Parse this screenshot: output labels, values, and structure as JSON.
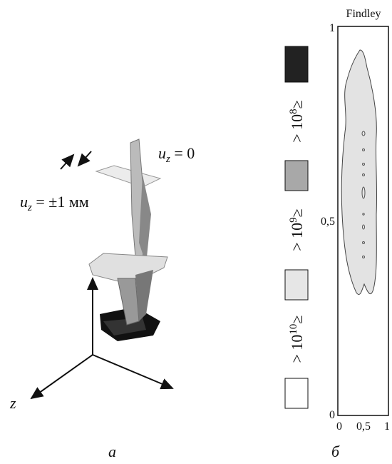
{
  "panel_a": {
    "caption": "а",
    "axis_label": "z",
    "label_fixed": {
      "var": "u",
      "sub": "z",
      "rest": " = 0"
    },
    "label_disp": {
      "var": "u",
      "sub": "z",
      "rest": " = ±1 мм"
    }
  },
  "panel_b": {
    "caption": "б",
    "title": "Findley",
    "y_ticks": [
      "1",
      "0,5",
      "0"
    ],
    "x_ticks": [
      "0",
      "0,5",
      "1"
    ],
    "legend": [
      {
        "prefix": "> 10",
        "exp": "8",
        "suffix": "≥"
      },
      {
        "prefix": "> 10",
        "exp": "9",
        "suffix": "≥"
      },
      {
        "prefix": "> 10",
        "exp": "10",
        "suffix": "≥"
      }
    ]
  }
}
